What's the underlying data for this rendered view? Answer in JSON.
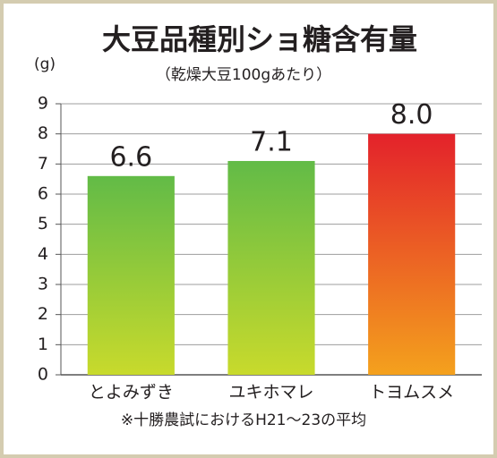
{
  "chart_data": {
    "type": "bar",
    "title": "大豆品種別ショ糖含有量",
    "subtitle": "（乾燥大豆100gあたり）",
    "y_label": "(g)",
    "footnote": "※十勝農試におけるH21〜23の平均",
    "categories": [
      "とよみずき",
      "ユキホマレ",
      "トヨムスメ"
    ],
    "values": [
      6.6,
      7.1,
      8.0
    ],
    "value_labels": [
      "6.6",
      "7.1",
      "8.0"
    ],
    "gradients": [
      {
        "top": "#62bb47",
        "bottom": "#c8da2c"
      },
      {
        "top": "#62bb47",
        "bottom": "#c8da2c"
      },
      {
        "top": "#e3222b",
        "bottom": "#f4a11d"
      }
    ],
    "ylim": [
      0,
      9
    ],
    "yticks": [
      0,
      1,
      2,
      3,
      4,
      5,
      6,
      7,
      8,
      9
    ],
    "grid": true
  }
}
